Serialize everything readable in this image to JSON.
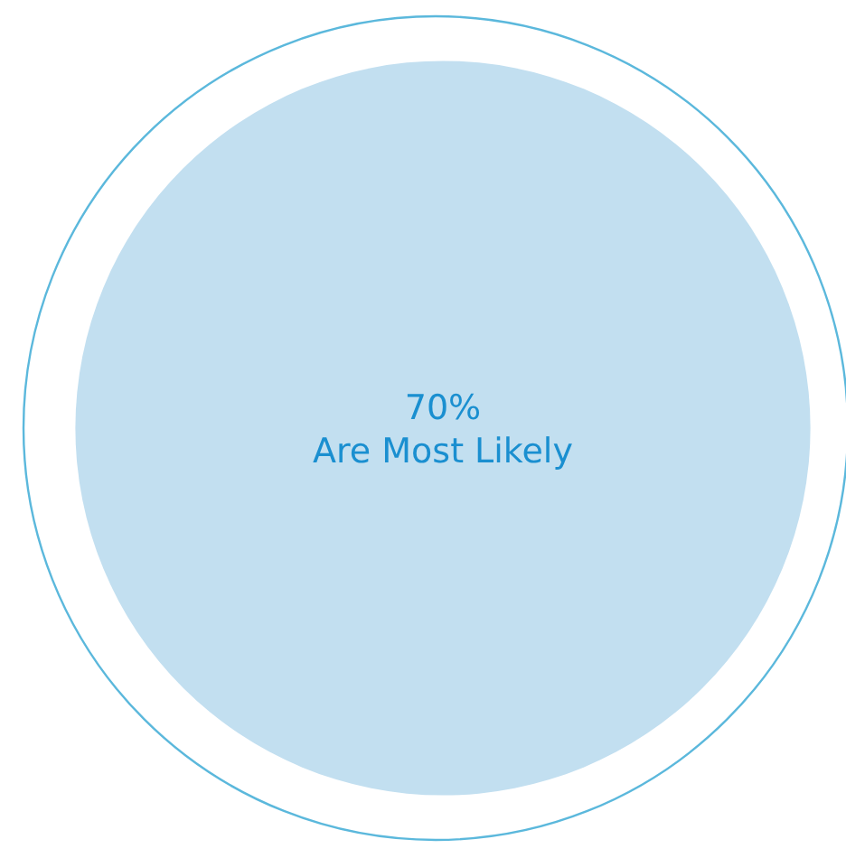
{
  "chart_data": {
    "type": "other",
    "categories": [
      "Are Most Likely"
    ],
    "values": [
      70
    ],
    "value_labels": [
      "70%"
    ],
    "colors": [
      "#c2dff0"
    ]
  }
}
